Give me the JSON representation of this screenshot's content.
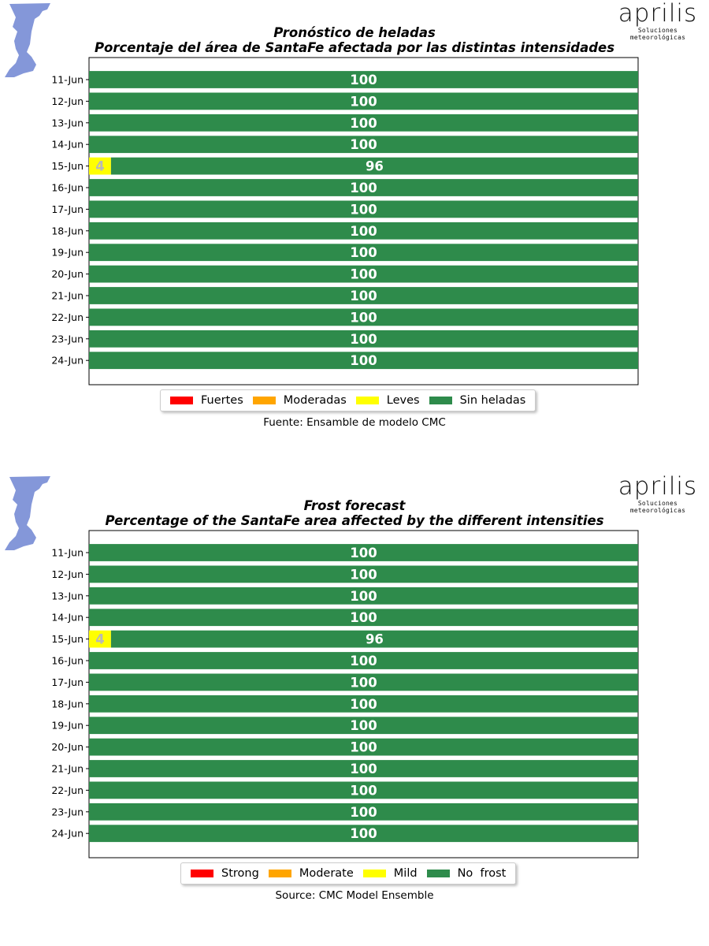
{
  "colors": {
    "strong": "#ff0000",
    "moderate": "#ffa500",
    "mild": "#ffff00",
    "none": "#2e8b4b",
    "map": "#8497d9"
  },
  "logo": {
    "word": "aprilis",
    "subtitle": "Soluciones meteorológicas"
  },
  "chart_data": [
    {
      "type": "bar",
      "orientation": "horizontal",
      "stacked": true,
      "title": "Pronóstico de heladas",
      "subtitle": "Porcentaje del área de SantaFe afectada por las distintas intensidades",
      "categories": [
        "11-Jun",
        "12-Jun",
        "13-Jun",
        "14-Jun",
        "15-Jun",
        "16-Jun",
        "17-Jun",
        "18-Jun",
        "19-Jun",
        "20-Jun",
        "21-Jun",
        "22-Jun",
        "23-Jun",
        "24-Jun"
      ],
      "xlim": [
        0,
        100
      ],
      "series": [
        {
          "name": "Fuertes",
          "color_key": "strong",
          "values": [
            0,
            0,
            0,
            0,
            0,
            0,
            0,
            0,
            0,
            0,
            0,
            0,
            0,
            0
          ]
        },
        {
          "name": "Moderadas",
          "color_key": "moderate",
          "values": [
            0,
            0,
            0,
            0,
            0,
            0,
            0,
            0,
            0,
            0,
            0,
            0,
            0,
            0
          ]
        },
        {
          "name": "Leves",
          "color_key": "mild",
          "values": [
            0,
            0,
            0,
            0,
            4,
            0,
            0,
            0,
            0,
            0,
            0,
            0,
            0,
            0
          ]
        },
        {
          "name": "Sin heladas",
          "color_key": "none",
          "values": [
            100,
            100,
            100,
            100,
            96,
            100,
            100,
            100,
            100,
            100,
            100,
            100,
            100,
            100
          ]
        }
      ],
      "legend": "bottom-center",
      "source": "Fuente: Ensamble de modelo CMC"
    },
    {
      "type": "bar",
      "orientation": "horizontal",
      "stacked": true,
      "title": "Frost forecast",
      "subtitle": "Percentage of the SantaFe area affected by the different intensities",
      "categories": [
        "11-Jun",
        "12-Jun",
        "13-Jun",
        "14-Jun",
        "15-Jun",
        "16-Jun",
        "17-Jun",
        "18-Jun",
        "19-Jun",
        "20-Jun",
        "21-Jun",
        "22-Jun",
        "23-Jun",
        "24-Jun"
      ],
      "xlim": [
        0,
        100
      ],
      "series": [
        {
          "name": "Strong",
          "color_key": "strong",
          "values": [
            0,
            0,
            0,
            0,
            0,
            0,
            0,
            0,
            0,
            0,
            0,
            0,
            0,
            0
          ]
        },
        {
          "name": "Moderate",
          "color_key": "moderate",
          "values": [
            0,
            0,
            0,
            0,
            0,
            0,
            0,
            0,
            0,
            0,
            0,
            0,
            0,
            0
          ]
        },
        {
          "name": "Mild",
          "color_key": "mild",
          "values": [
            0,
            0,
            0,
            0,
            4,
            0,
            0,
            0,
            0,
            0,
            0,
            0,
            0,
            0
          ]
        },
        {
          "name": "No  frost",
          "color_key": "none",
          "values": [
            100,
            100,
            100,
            100,
            96,
            100,
            100,
            100,
            100,
            100,
            100,
            100,
            100,
            100
          ]
        }
      ],
      "legend": "bottom-center",
      "source": "Source: CMC Model Ensemble"
    }
  ]
}
